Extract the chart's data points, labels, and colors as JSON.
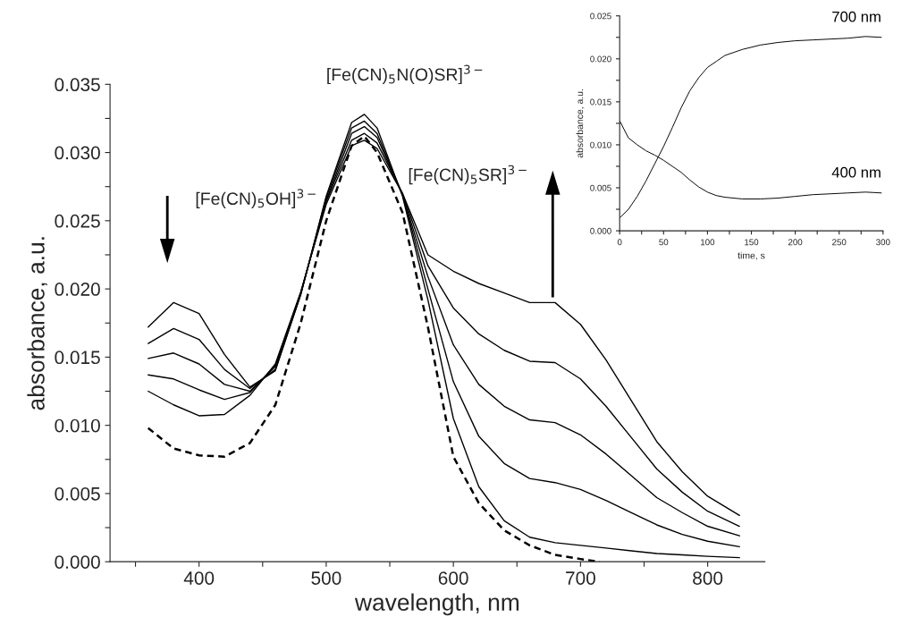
{
  "chart_data": [
    {
      "type": "line",
      "xlabel": "wavelength, nm",
      "ylabel": "absorbance, a.u.",
      "x": [
        360,
        380,
        400,
        420,
        440,
        460,
        480,
        500,
        520,
        530,
        540,
        560,
        580,
        600,
        620,
        640,
        660,
        680,
        700,
        720,
        740,
        760,
        780,
        800,
        825
      ],
      "series": [
        {
          "color": "#000000",
          "values": [
            0.0172,
            0.019,
            0.0182,
            0.0152,
            0.0128,
            0.014,
            0.0196,
            0.0268,
            0.0322,
            0.0328,
            0.0318,
            0.0268,
            0.0192,
            0.0105,
            0.0055,
            0.003,
            0.0018,
            0.0014,
            0.0012,
            0.001,
            0.0008,
            0.0006,
            0.0005,
            0.0004,
            0.0003
          ]
        },
        {
          "color": "#000000",
          "values": [
            0.016,
            0.0171,
            0.0163,
            0.0141,
            0.0127,
            0.0141,
            0.0196,
            0.0267,
            0.0318,
            0.0323,
            0.0314,
            0.0269,
            0.02,
            0.0132,
            0.0092,
            0.0072,
            0.0061,
            0.0058,
            0.0053,
            0.0045,
            0.0036,
            0.0027,
            0.002,
            0.0015,
            0.0011
          ]
        },
        {
          "color": "#000000",
          "values": [
            0.0149,
            0.0153,
            0.0145,
            0.013,
            0.0125,
            0.0143,
            0.0197,
            0.0265,
            0.0314,
            0.0319,
            0.0311,
            0.0269,
            0.0209,
            0.0159,
            0.013,
            0.0114,
            0.0104,
            0.0102,
            0.0093,
            0.0079,
            0.0063,
            0.0047,
            0.0036,
            0.0026,
            0.0019
          ]
        },
        {
          "color": "#000000",
          "values": [
            0.0137,
            0.0134,
            0.0126,
            0.0119,
            0.0124,
            0.0144,
            0.0197,
            0.0264,
            0.0309,
            0.0314,
            0.0307,
            0.027,
            0.0217,
            0.0186,
            0.0167,
            0.0155,
            0.0147,
            0.0146,
            0.0134,
            0.0114,
            0.0091,
            0.0068,
            0.0051,
            0.0037,
            0.0026
          ]
        },
        {
          "color": "#000000",
          "values": [
            0.0125,
            0.0115,
            0.0107,
            0.0108,
            0.0122,
            0.0145,
            0.0198,
            0.0262,
            0.0305,
            0.0309,
            0.0303,
            0.027,
            0.0225,
            0.0213,
            0.0204,
            0.0197,
            0.019,
            0.019,
            0.0174,
            0.0148,
            0.0118,
            0.0088,
            0.0066,
            0.0048,
            0.0034
          ]
        },
        {
          "color": "#000000",
          "line_style": "dashed",
          "x": [
            360,
            380,
            400,
            420,
            440,
            460,
            480,
            500,
            520,
            530,
            540,
            560,
            580,
            600,
            620,
            640,
            660,
            680,
            700,
            715
          ],
          "values": [
            0.0098,
            0.0083,
            0.0078,
            0.0077,
            0.0087,
            0.0115,
            0.0175,
            0.025,
            0.0305,
            0.0312,
            0.03,
            0.0256,
            0.0172,
            0.0077,
            0.0043,
            0.0023,
            0.0012,
            0.0005,
            0.0002,
            0.0
          ]
        }
      ],
      "xlim": [
        330,
        845
      ],
      "xticks": [
        {
          "value": 350,
          "label": null
        },
        {
          "value": 400,
          "label": "400"
        },
        {
          "value": 450,
          "label": null
        },
        {
          "value": 500,
          "label": "500"
        },
        {
          "value": 550,
          "label": null
        },
        {
          "value": 600,
          "label": "600"
        },
        {
          "value": 650,
          "label": null
        },
        {
          "value": 700,
          "label": "700"
        },
        {
          "value": 750,
          "label": null
        },
        {
          "value": 800,
          "label": "800"
        }
      ],
      "ylim": [
        0,
        0.035
      ],
      "yticks": [
        {
          "value": 0,
          "label": "0.000"
        },
        {
          "value": 0.0025,
          "label": null
        },
        {
          "value": 0.005,
          "label": "0.005"
        },
        {
          "value": 0.0075,
          "label": null
        },
        {
          "value": 0.01,
          "label": "0.010"
        },
        {
          "value": 0.0125,
          "label": null
        },
        {
          "value": 0.015,
          "label": "0.015"
        },
        {
          "value": 0.0175,
          "label": null
        },
        {
          "value": 0.02,
          "label": "0.020"
        },
        {
          "value": 0.0225,
          "label": null
        },
        {
          "value": 0.025,
          "label": "0.025"
        },
        {
          "value": 0.0275,
          "label": null
        },
        {
          "value": 0.03,
          "label": "0.030"
        },
        {
          "value": 0.0325,
          "label": null
        },
        {
          "value": 0.035,
          "label": "0.035"
        }
      ],
      "annotations": [
        "[Fe(CN)$_{5}$N(O)SR]$^{3−}$",
        "[Fe(CN)$_{5}$OH]$^{3−}$",
        "[Fe(CN)$_{5}$SR]$^{3−}$"
      ],
      "grid": false,
      "legend": false
    },
    {
      "type": "line",
      "xlabel": "time, s",
      "ylabel": "absorbance, a.u.",
      "series": [
        {
          "name": "700 nm",
          "color": "#000000",
          "x": [
            0,
            10,
            20,
            30,
            40,
            50,
            60,
            70,
            80,
            90,
            100,
            110,
            120,
            140,
            160,
            180,
            200,
            220,
            240,
            260,
            280,
            298
          ],
          "values": [
            0.0015,
            0.0025,
            0.004,
            0.0058,
            0.0078,
            0.0098,
            0.012,
            0.0143,
            0.0163,
            0.0178,
            0.019,
            0.0197,
            0.0204,
            0.0211,
            0.0216,
            0.0219,
            0.0221,
            0.0222,
            0.0223,
            0.0224,
            0.0226,
            0.0225
          ]
        },
        {
          "name": "400 nm",
          "color": "#000000",
          "x": [
            0,
            5,
            10,
            20,
            30,
            40,
            50,
            60,
            70,
            80,
            90,
            100,
            110,
            120,
            140,
            160,
            180,
            200,
            220,
            240,
            260,
            280,
            298
          ],
          "values": [
            0.0128,
            0.0118,
            0.0108,
            0.01,
            0.0093,
            0.0088,
            0.0082,
            0.0075,
            0.0068,
            0.0059,
            0.0051,
            0.0045,
            0.0041,
            0.0039,
            0.0037,
            0.0037,
            0.0038,
            0.004,
            0.0042,
            0.0043,
            0.0044,
            0.0045,
            0.0044
          ]
        }
      ],
      "xlim": [
        0,
        300
      ],
      "xticks": [
        {
          "value": 0,
          "label": "0"
        },
        {
          "value": 25,
          "label": null
        },
        {
          "value": 50,
          "label": "50"
        },
        {
          "value": 75,
          "label": null
        },
        {
          "value": 100,
          "label": "100"
        },
        {
          "value": 125,
          "label": null
        },
        {
          "value": 150,
          "label": "150"
        },
        {
          "value": 175,
          "label": null
        },
        {
          "value": 200,
          "label": "200"
        },
        {
          "value": 225,
          "label": null
        },
        {
          "value": 250,
          "label": "250"
        },
        {
          "value": 275,
          "label": null
        },
        {
          "value": 300,
          "label": "300"
        }
      ],
      "ylim": [
        0,
        0.025
      ],
      "yticks": [
        {
          "value": 0,
          "label": "0.000"
        },
        {
          "value": 0.0025,
          "label": null
        },
        {
          "value": 0.005,
          "label": "0.005"
        },
        {
          "value": 0.0075,
          "label": null
        },
        {
          "value": 0.01,
          "label": "0.010"
        },
        {
          "value": 0.0125,
          "label": null
        },
        {
          "value": 0.015,
          "label": "0.015"
        },
        {
          "value": 0.0175,
          "label": null
        },
        {
          "value": 0.02,
          "label": "0.020"
        },
        {
          "value": 0.0225,
          "label": null
        },
        {
          "value": 0.025,
          "label": "0.025"
        }
      ],
      "grid": false,
      "legend": false
    }
  ]
}
